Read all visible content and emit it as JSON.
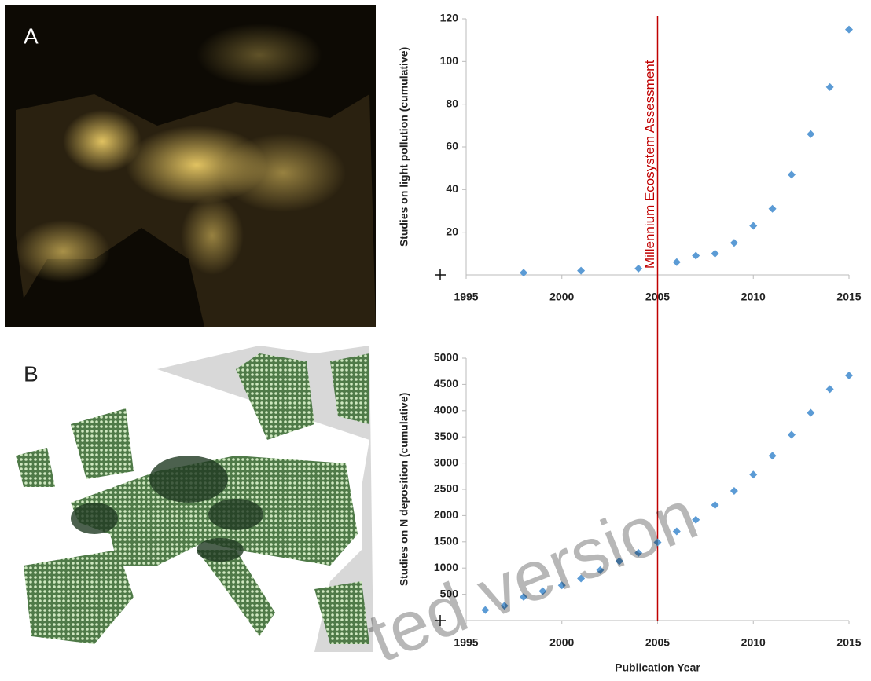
{
  "panels": [
    "A",
    "B"
  ],
  "watermark": "ted version",
  "chart_data": [
    {
      "type": "scatter",
      "y_label": "Studies on light pollution (cumulative)",
      "x": [
        1998,
        2001,
        2004,
        2006,
        2007,
        2008,
        2009,
        2010,
        2011,
        2012,
        2013,
        2014,
        2015
      ],
      "values": [
        1,
        2,
        3,
        6,
        9,
        10,
        15,
        23,
        31,
        47,
        66,
        88,
        115
      ],
      "color": "#5b9bd5",
      "xlim": [
        1995,
        2015
      ],
      "xticks": [
        1995,
        2000,
        2005,
        2010,
        2015
      ],
      "ylim": [
        0,
        120
      ],
      "yticks": [
        20,
        40,
        60,
        80,
        100,
        120
      ],
      "vline": 2005,
      "vline_color": "#c00000",
      "annotation": "Millennium Ecosystem Assessment"
    },
    {
      "type": "scatter",
      "y_label": "Studies on N deposition (cumulative)",
      "x_label": "Publication Year",
      "x": [
        1996,
        1997,
        1998,
        1999,
        2000,
        2001,
        2002,
        2003,
        2004,
        2005,
        2006,
        2007,
        2008,
        2009,
        2010,
        2011,
        2012,
        2013,
        2014,
        2015
      ],
      "values": [
        200,
        280,
        450,
        560,
        670,
        800,
        960,
        1130,
        1290,
        1490,
        1700,
        1920,
        2200,
        2470,
        2780,
        3140,
        3540,
        3960,
        4410,
        4670
      ],
      "color": "#5b9bd5",
      "xlim": [
        1995,
        2015
      ],
      "xticks": [
        1995,
        2000,
        2005,
        2010,
        2015
      ],
      "ylim": [
        0,
        5000
      ],
      "yticks": [
        500,
        1000,
        1500,
        2000,
        2500,
        3000,
        3500,
        4000,
        4500,
        5000
      ],
      "vline": 2005,
      "vline_color": "#c00000"
    }
  ]
}
